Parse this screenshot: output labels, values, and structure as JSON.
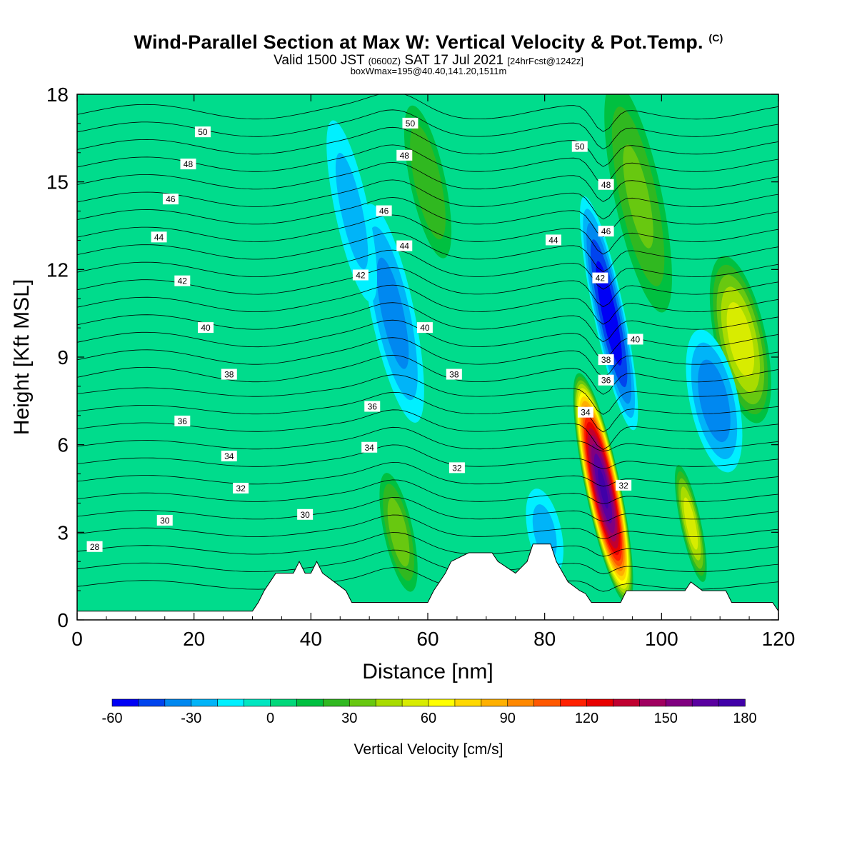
{
  "header": {
    "title": "Wind-Parallel Section at Max W: Vertical Velocity & Pot.Temp.",
    "copyright": "(C)",
    "valid_prefix": "Valid 1500 JST",
    "valid_utc": "(0600Z)",
    "valid_date": "SAT 17 Jul 2021",
    "forecast": "[24hrFcst@1242z]",
    "boxinfo": "boxWmax=195@40.40,141.20,1511m"
  },
  "chart_data": {
    "type": "heatmap",
    "xlabel": "Distance [nm]",
    "ylabel": "Height [Kft MSL]",
    "xlim": [
      0,
      120
    ],
    "ylim": [
      0,
      18
    ],
    "xticks": [
      0,
      20,
      40,
      60,
      80,
      100,
      120
    ],
    "yticks": [
      0,
      3,
      6,
      9,
      12,
      15,
      18
    ],
    "colorbar": {
      "label": "Vertical Velocity [cm/s]",
      "ticks": [
        -60,
        -30,
        0,
        30,
        60,
        90,
        120,
        150,
        180
      ],
      "levels": [
        -60,
        -50,
        -40,
        -30,
        -20,
        -10,
        0,
        10,
        20,
        30,
        40,
        50,
        60,
        70,
        80,
        90,
        100,
        110,
        120,
        130,
        140,
        150,
        160,
        170,
        180
      ],
      "colors": [
        "#0000f5",
        "#0044ee",
        "#0088f0",
        "#00b4f8",
        "#00f0ff",
        "#00e6c0",
        "#00d87a",
        "#00c040",
        "#30b820",
        "#68c810",
        "#a8dc00",
        "#d8ec00",
        "#ffff00",
        "#ffd800",
        "#ffb000",
        "#ff8800",
        "#ff5800",
        "#ff2000",
        "#e80000",
        "#c00030",
        "#a00060",
        "#800080",
        "#5a00a0",
        "#4000a8"
      ]
    },
    "background_color": "#00dc8c",
    "velocity_features": [
      {
        "x": 90,
        "y": 4.5,
        "sx": 1.3,
        "sy": 2.6,
        "w": 170
      },
      {
        "x": 91,
        "y": 10.5,
        "sx": 1.2,
        "sy": 2.8,
        "w": -55
      },
      {
        "x": 113.5,
        "y": 9.6,
        "sx": 2.0,
        "sy": 2.0,
        "w": 55
      },
      {
        "x": 109,
        "y": 7.5,
        "sx": 2.0,
        "sy": 1.8,
        "w": -35
      },
      {
        "x": 105,
        "y": 3.3,
        "sx": 0.8,
        "sy": 1.4,
        "w": 55
      },
      {
        "x": 54,
        "y": 10.5,
        "sx": 1.8,
        "sy": 2.8,
        "w": -32
      },
      {
        "x": 60,
        "y": 15,
        "sx": 1.5,
        "sy": 2.0,
        "w": 28
      },
      {
        "x": 47,
        "y": 14,
        "sx": 1.5,
        "sy": 2.5,
        "w": -22
      },
      {
        "x": 55,
        "y": 3.0,
        "sx": 1.2,
        "sy": 1.5,
        "w": 35
      },
      {
        "x": 96,
        "y": 14.5,
        "sx": 2.0,
        "sy": 3.0,
        "w": 30
      },
      {
        "x": 80,
        "y": 3.0,
        "sx": 1.5,
        "sy": 1.2,
        "w": -22
      }
    ],
    "isentrope_labels": [
      {
        "label": "28",
        "x": 3,
        "y": 2.5
      },
      {
        "label": "30",
        "x": 15,
        "y": 3.4
      },
      {
        "label": "32",
        "x": 28,
        "y": 4.5
      },
      {
        "label": "34",
        "x": 26,
        "y": 5.6
      },
      {
        "label": "36",
        "x": 18,
        "y": 6.8
      },
      {
        "label": "38",
        "x": 26,
        "y": 8.4
      },
      {
        "label": "40",
        "x": 22,
        "y": 10.0
      },
      {
        "label": "42",
        "x": 18,
        "y": 11.6
      },
      {
        "label": "44",
        "x": 14,
        "y": 13.1
      },
      {
        "label": "46",
        "x": 16,
        "y": 14.4
      },
      {
        "label": "48",
        "x": 19,
        "y": 15.6
      },
      {
        "label": "50",
        "x": 21.5,
        "y": 16.7
      },
      {
        "label": "30",
        "x": 39,
        "y": 3.6
      },
      {
        "label": "34",
        "x": 50,
        "y": 5.9
      },
      {
        "label": "36",
        "x": 50.5,
        "y": 7.3
      },
      {
        "label": "42",
        "x": 48.5,
        "y": 11.8
      },
      {
        "label": "44",
        "x": 56,
        "y": 12.8
      },
      {
        "label": "46",
        "x": 52.5,
        "y": 14.0
      },
      {
        "label": "48",
        "x": 56,
        "y": 15.9
      },
      {
        "label": "50",
        "x": 57,
        "y": 17.0
      },
      {
        "label": "40",
        "x": 59.5,
        "y": 10.0
      },
      {
        "label": "38",
        "x": 64.5,
        "y": 8.4
      },
      {
        "label": "32",
        "x": 65,
        "y": 5.2
      },
      {
        "label": "44",
        "x": 81.5,
        "y": 13.0
      },
      {
        "label": "50",
        "x": 86,
        "y": 16.2
      },
      {
        "label": "48",
        "x": 90.5,
        "y": 14.9
      },
      {
        "label": "46",
        "x": 90.5,
        "y": 13.3
      },
      {
        "label": "42",
        "x": 89.5,
        "y": 11.7
      },
      {
        "label": "38",
        "x": 90.5,
        "y": 8.9
      },
      {
        "label": "36",
        "x": 90.5,
        "y": 8.2
      },
      {
        "label": "34",
        "x": 87,
        "y": 7.1
      },
      {
        "label": "40",
        "x": 95.5,
        "y": 9.6
      },
      {
        "label": "32",
        "x": 93.5,
        "y": 4.6
      }
    ],
    "terrain": [
      {
        "x": 0,
        "y": 0.3
      },
      {
        "x": 30,
        "y": 0.3
      },
      {
        "x": 31,
        "y": 0.6
      },
      {
        "x": 32,
        "y": 1.0
      },
      {
        "x": 33,
        "y": 1.3
      },
      {
        "x": 34,
        "y": 1.6
      },
      {
        "x": 37,
        "y": 1.6
      },
      {
        "x": 38,
        "y": 2.0
      },
      {
        "x": 39,
        "y": 1.6
      },
      {
        "x": 40,
        "y": 1.6
      },
      {
        "x": 41,
        "y": 2.0
      },
      {
        "x": 42,
        "y": 1.6
      },
      {
        "x": 44,
        "y": 1.3
      },
      {
        "x": 46,
        "y": 1.0
      },
      {
        "x": 47,
        "y": 0.6
      },
      {
        "x": 60,
        "y": 0.6
      },
      {
        "x": 61,
        "y": 1.0
      },
      {
        "x": 63,
        "y": 1.6
      },
      {
        "x": 64,
        "y": 2.0
      },
      {
        "x": 67,
        "y": 2.3
      },
      {
        "x": 71,
        "y": 2.3
      },
      {
        "x": 72,
        "y": 2.0
      },
      {
        "x": 75,
        "y": 1.6
      },
      {
        "x": 77,
        "y": 2.0
      },
      {
        "x": 78,
        "y": 2.6
      },
      {
        "x": 81,
        "y": 2.6
      },
      {
        "x": 82,
        "y": 2.0
      },
      {
        "x": 84,
        "y": 1.3
      },
      {
        "x": 86,
        "y": 1.0
      },
      {
        "x": 87,
        "y": 0.9
      },
      {
        "x": 88,
        "y": 0.6
      },
      {
        "x": 93,
        "y": 0.6
      },
      {
        "x": 94,
        "y": 1.0
      },
      {
        "x": 104,
        "y": 1.0
      },
      {
        "x": 105,
        "y": 1.3
      },
      {
        "x": 107,
        "y": 1.0
      },
      {
        "x": 111,
        "y": 1.0
      },
      {
        "x": 112,
        "y": 0.6
      },
      {
        "x": 119,
        "y": 0.6
      },
      {
        "x": 120,
        "y": 0.3
      }
    ]
  }
}
